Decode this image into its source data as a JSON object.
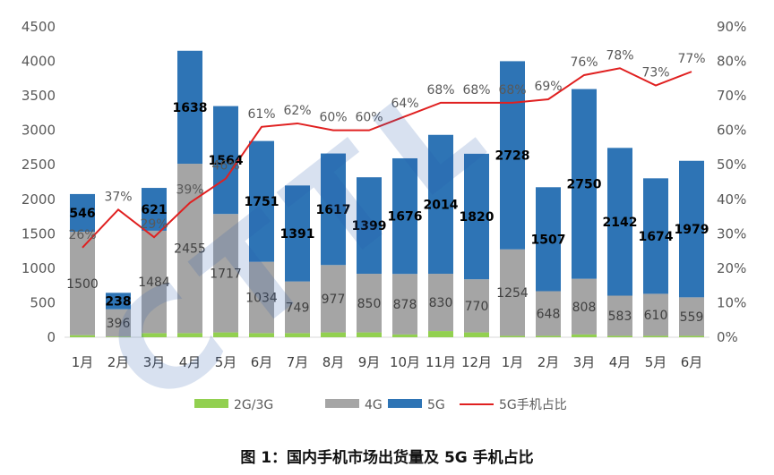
{
  "chart_data": {
    "type": "bar",
    "categories": [
      "1月",
      "2月",
      "3月",
      "4月",
      "5月",
      "6月",
      "7月",
      "8月",
      "9月",
      "10月",
      "11月",
      "12月",
      "1月",
      "2月",
      "3月",
      "4月",
      "5月",
      "6月"
    ],
    "series": [
      {
        "name": "2G/3G",
        "color": "#92d050",
        "values": [
          30,
          10,
          60,
          60,
          70,
          60,
          60,
          70,
          70,
          40,
          90,
          70,
          20,
          20,
          40,
          20,
          20,
          20
        ]
      },
      {
        "name": "4G",
        "color": "#a5a5a5",
        "values": [
          1500,
          396,
          1484,
          2455,
          1717,
          1034,
          749,
          977,
          850,
          878,
          830,
          770,
          1254,
          648,
          808,
          583,
          610,
          559
        ]
      },
      {
        "name": "5G",
        "color": "#2e74b5",
        "values": [
          546,
          238,
          621,
          1638,
          1564,
          1751,
          1391,
          1617,
          1399,
          1676,
          2014,
          1820,
          2728,
          1507,
          2750,
          2142,
          1674,
          1979
        ]
      },
      {
        "name": "5G手机占比",
        "color": "#e02020",
        "axis": "right",
        "values": [
          26,
          37,
          29,
          39,
          46,
          61,
          62,
          60,
          60,
          64,
          68,
          68,
          68,
          69,
          76,
          78,
          73,
          77
        ]
      }
    ],
    "labels_4g": [
      "1500",
      "396",
      "1484",
      "2455",
      "1717",
      "1034",
      "749",
      "977",
      "850",
      "878",
      "830",
      "770",
      "1254",
      "648",
      "808",
      "583",
      "610",
      "559"
    ],
    "labels_5g": [
      "546",
      "238",
      "621",
      "1638",
      "1564",
      "1751",
      "1391",
      "1617",
      "1399",
      "1676",
      "2014",
      "1820",
      "2728",
      "1507",
      "2750",
      "2142",
      "1674",
      "1979"
    ],
    "labels_pct": [
      "26%",
      "37%",
      "29%",
      "39%",
      "46%",
      "61%",
      "62%",
      "60%",
      "60%",
      "64%",
      "68%",
      "68%",
      "68%",
      "69%",
      "76%",
      "78%",
      "73%",
      "77%"
    ],
    "y_left": {
      "min": 0,
      "max": 4500,
      "ticks": [
        "0",
        "500",
        "1000",
        "1500",
        "2000",
        "2500",
        "3000",
        "3500",
        "4000",
        "4500"
      ]
    },
    "y_right": {
      "min": 0,
      "max": 90,
      "ticks": [
        "0%",
        "10%",
        "20%",
        "30%",
        "40%",
        "50%",
        "60%",
        "70%",
        "80%",
        "90%"
      ]
    },
    "legend": {
      "position": "bottom",
      "items": [
        "2G/3G",
        "4G",
        "5G",
        "5G手机占比"
      ]
    },
    "grid": false
  },
  "caption": "图 1：国内手机市场出货量及 5G 手机占比"
}
